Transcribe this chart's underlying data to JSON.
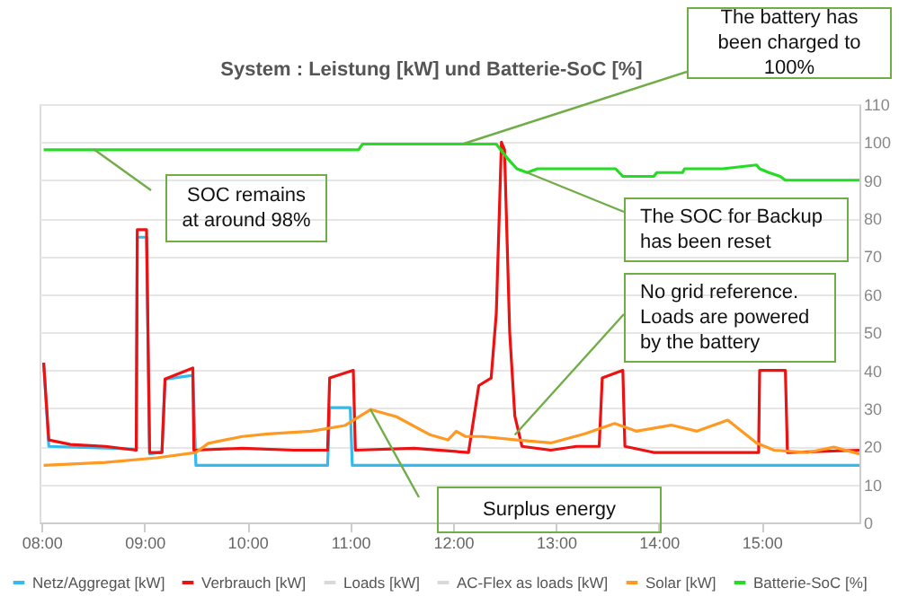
{
  "chart_data": {
    "type": "line",
    "title": "System : Leistung [kW] und Batterie-SoC [%]",
    "xlim": [
      7.98,
      15.95
    ],
    "xticks": [
      {
        "value": 8,
        "label": "08:00"
      },
      {
        "value": 9,
        "label": "09:00"
      },
      {
        "value": 10,
        "label": "10:00"
      },
      {
        "value": 11,
        "label": "11:00"
      },
      {
        "value": 12,
        "label": "12:00"
      },
      {
        "value": 13,
        "label": "13:00"
      },
      {
        "value": 14,
        "label": "14:00"
      },
      {
        "value": 15,
        "label": "15:00"
      }
    ],
    "ylim": [
      0,
      110
    ],
    "yticks": [
      0,
      10,
      20,
      30,
      40,
      50,
      60,
      70,
      80,
      90,
      100,
      110
    ],
    "grid": "y",
    "legend": "bottom",
    "tick_labels": "xy",
    "line_style": "solid",
    "marker": "none",
    "series": [
      {
        "name": "Netz/Aggregat [kW]",
        "color": "#33bbee",
        "x": [
          8.02,
          8.07,
          8.9,
          8.92,
          8.93,
          9.02,
          9.05,
          9.17,
          9.2,
          9.47,
          9.5,
          10.78,
          10.8,
          11.0,
          11.02,
          12.95,
          15.95
        ],
        "values": [
          42,
          20,
          19.3,
          19,
          75,
          75,
          18,
          18.5,
          37.7,
          38.7,
          15,
          15,
          30.2,
          30.2,
          15,
          15,
          15
        ]
      },
      {
        "name": "Verbrauch [kW]",
        "color": "#ee1111",
        "x": [
          8.02,
          8.07,
          8.28,
          8.62,
          8.92,
          8.93,
          9.02,
          9.05,
          9.17,
          9.2,
          9.47,
          9.48,
          9.95,
          10.45,
          10.78,
          10.8,
          11.03,
          11.05,
          11.62,
          12.15,
          12.25,
          12.37,
          12.42,
          12.47,
          12.5,
          12.55,
          12.6,
          12.67,
          12.95,
          13.2,
          13.42,
          13.45,
          13.65,
          13.67,
          13.95,
          14.62,
          14.97,
          14.98,
          15.23,
          15.25,
          15.95
        ],
        "values": [
          42,
          21.7,
          20.5,
          20,
          19,
          77,
          77,
          18.4,
          18.4,
          37.7,
          40.6,
          19,
          19.5,
          19,
          19,
          38,
          40,
          19,
          19.5,
          18.4,
          36,
          38,
          55,
          100,
          98,
          50,
          28,
          20,
          19,
          20,
          20,
          38,
          40,
          20,
          18.4,
          18.4,
          18.4,
          40,
          40,
          18.4,
          19
        ]
      },
      {
        "name": "Loads [kW]",
        "color": "#d9d9d9"
      },
      {
        "name": "AC-Flex as loads [kW]",
        "color": "#d9d9d9"
      },
      {
        "name": "Solar [kW]",
        "color": "#ff9922",
        "x": [
          8.02,
          8.62,
          9.12,
          9.5,
          9.62,
          9.95,
          10.2,
          10.62,
          10.95,
          11.2,
          11.45,
          11.78,
          11.95,
          12.03,
          12.12,
          12.28,
          12.62,
          12.95,
          13.28,
          13.57,
          13.78,
          14.12,
          14.37,
          14.67,
          14.95,
          15.12,
          15.45,
          15.7,
          15.95
        ],
        "values": [
          15,
          15.8,
          17,
          18.4,
          20.8,
          22.6,
          23.3,
          24,
          25.5,
          29.7,
          27.8,
          23,
          21.7,
          24,
          22.6,
          22.6,
          21.7,
          20.9,
          23.3,
          26,
          24,
          25.6,
          24,
          26.9,
          20.9,
          19,
          18.4,
          19.8,
          18
        ]
      },
      {
        "name": "Batterie-SoC [%]",
        "color": "#22dd22",
        "x": [
          8.02,
          11.08,
          11.12,
          12.42,
          12.52,
          12.62,
          12.72,
          12.82,
          13.58,
          13.65,
          13.95,
          13.98,
          14.23,
          14.25,
          14.62,
          14.95,
          14.98,
          15.07,
          15.18,
          15.23,
          15.95
        ],
        "values": [
          98,
          98,
          99.5,
          99.5,
          96,
          93,
          92,
          93,
          93,
          91,
          91,
          92,
          92,
          93,
          93,
          94,
          93,
          92,
          91,
          90,
          90
        ]
      }
    ],
    "annotations": [
      "The battery has been charged to 100%",
      "SOC remains at around 98%",
      {
        "text": "The SOC for Backup has been reset",
        "x": 12.72,
        "y": 92
      },
      {
        "text": "No grid reference. Loads are powered by the battery",
        "x": 12.6,
        "y": 23
      },
      "Surplus energy"
    ]
  }
}
